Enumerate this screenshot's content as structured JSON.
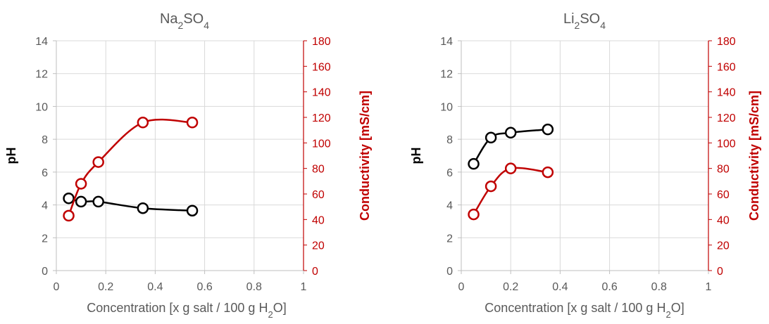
{
  "colors": {
    "ph_series": "#000000",
    "conductivity_series": "#c00000",
    "grid": "#d9d9d9",
    "axis": "#bfbfbf",
    "tick_text": "#595959"
  },
  "chart_data": [
    {
      "type": "scatter",
      "title": "Na2SO4",
      "title_parts": {
        "base": "Na",
        "sub1": "2",
        "mid": "SO",
        "sub2": "4"
      },
      "xlabel": "Concentration [x g salt / 100 g H2O]",
      "xlabel_parts": {
        "main": "Concentration [x g salt / 100 g H",
        "sub": "2",
        "end": "O]"
      },
      "ylabel": "pH",
      "y2label": "Conductivity [mS/cm]",
      "xlim": [
        0,
        1
      ],
      "ylim": [
        0,
        14
      ],
      "y2lim": [
        0,
        180
      ],
      "xticks": [
        "0",
        "0.2",
        "0.4",
        "0.6",
        "0.8",
        "1"
      ],
      "yticks": [
        "0",
        "2",
        "4",
        "6",
        "8",
        "10",
        "12",
        "14"
      ],
      "y2ticks": [
        "0",
        "20",
        "40",
        "60",
        "80",
        "100",
        "120",
        "140",
        "160",
        "180"
      ],
      "grid": true,
      "series": [
        {
          "axis": "left",
          "x": [
            0.05,
            0.1,
            0.17,
            0.35,
            0.55
          ],
          "values": [
            4.4,
            4.2,
            4.2,
            3.8,
            3.65
          ]
        },
        {
          "axis": "right",
          "x": [
            0.05,
            0.1,
            0.17,
            0.35,
            0.55
          ],
          "values": [
            43,
            68,
            85,
            116,
            116
          ]
        }
      ]
    },
    {
      "type": "scatter",
      "title": "Li2SO4",
      "title_parts": {
        "base": "Li",
        "sub1": "2",
        "mid": "SO",
        "sub2": "4"
      },
      "xlabel": "Concentration [x g salt / 100 g H2O]",
      "xlabel_parts": {
        "main": "Concentration [x g salt / 100 g H",
        "sub": "2",
        "end": "O]"
      },
      "ylabel": "pH",
      "y2label": "Conductivity [mS/cm]",
      "xlim": [
        0,
        1
      ],
      "ylim": [
        0,
        14
      ],
      "y2lim": [
        0,
        180
      ],
      "xticks": [
        "0",
        "0.2",
        "0.4",
        "0.6",
        "0.8",
        "1"
      ],
      "yticks": [
        "0",
        "2",
        "4",
        "6",
        "8",
        "10",
        "12",
        "14"
      ],
      "y2ticks": [
        "0",
        "20",
        "40",
        "60",
        "80",
        "100",
        "120",
        "140",
        "160",
        "180"
      ],
      "grid": true,
      "series": [
        {
          "axis": "left",
          "x": [
            0.05,
            0.12,
            0.2,
            0.35
          ],
          "values": [
            6.5,
            8.1,
            8.4,
            8.6
          ]
        },
        {
          "axis": "right",
          "x": [
            0.05,
            0.12,
            0.2,
            0.35
          ],
          "values": [
            44,
            66,
            80,
            77
          ]
        }
      ]
    }
  ]
}
